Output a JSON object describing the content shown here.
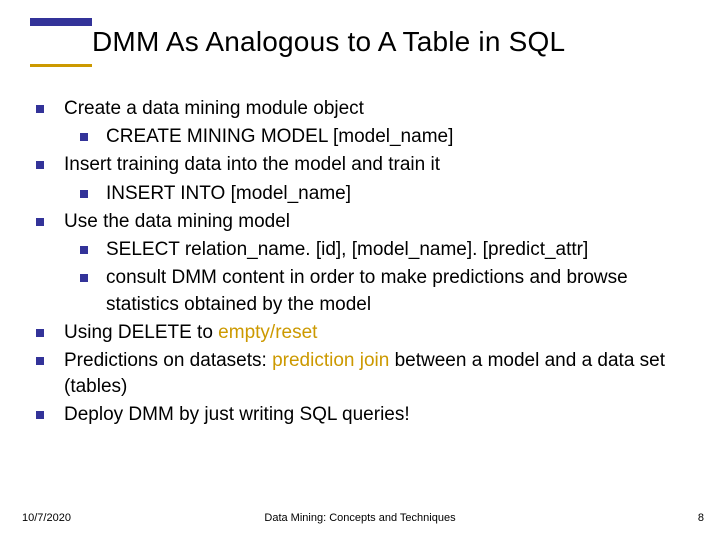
{
  "title": "DMM As Analogous to A Table in SQL",
  "colors": {
    "accent_blue": "#333399",
    "accent_gold": "#cc9900",
    "text": "#000000",
    "background": "#ffffff"
  },
  "typography": {
    "title_fontsize": 28,
    "body_fontsize": 19,
    "footer_fontsize": 11,
    "font_family": "Verdana"
  },
  "bullets": [
    {
      "level": 0,
      "segments": [
        {
          "t": "Create a data mining module object"
        }
      ]
    },
    {
      "level": 1,
      "segments": [
        {
          "t": "CREATE MINING MODEL [model_name]"
        }
      ]
    },
    {
      "level": 0,
      "segments": [
        {
          "t": "Insert training data into the model and train it"
        }
      ]
    },
    {
      "level": 1,
      "segments": [
        {
          "t": "INSERT INTO [model_name]"
        }
      ]
    },
    {
      "level": 0,
      "segments": [
        {
          "t": "Use the data mining model"
        }
      ]
    },
    {
      "level": 1,
      "segments": [
        {
          "t": "SELECT relation_name. [id], [model_name]. [predict_attr]"
        }
      ]
    },
    {
      "level": 1,
      "segments": [
        {
          "t": "consult DMM content in order to make predictions and browse statistics obtained by the model"
        }
      ]
    },
    {
      "level": 0,
      "segments": [
        {
          "t": "Using DELETE to "
        },
        {
          "t": "empty/reset",
          "accent": true
        }
      ]
    },
    {
      "level": 0,
      "segments": [
        {
          "t": "Predictions on datasets: "
        },
        {
          "t": "prediction join",
          "accent": true
        },
        {
          "t": " between a model and a data set (tables)"
        }
      ]
    },
    {
      "level": 0,
      "segments": [
        {
          "t": "Deploy DMM by just writing SQL queries!"
        }
      ]
    }
  ],
  "footer": {
    "date": "10/7/2020",
    "center": "Data Mining: Concepts and Techniques",
    "page": "8"
  }
}
